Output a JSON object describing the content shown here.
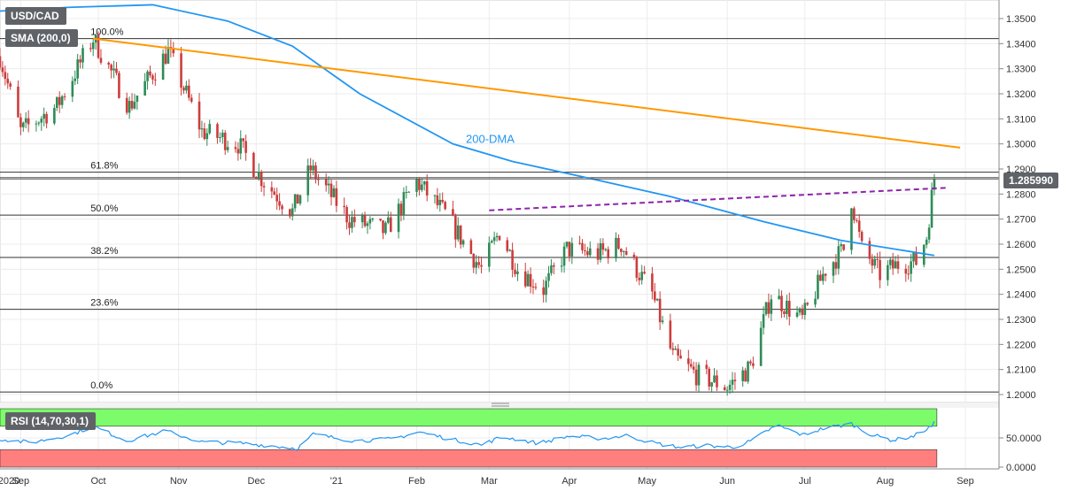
{
  "labels": {
    "symbol": "USD/CAD",
    "sma": "SMA (200,0)",
    "rsi": "RSI (14,70,30,1)",
    "dma_annotation": "200-DMA",
    "last_price": "1.285990"
  },
  "colors": {
    "up": "#2e8b57",
    "down": "#cd3c3c",
    "sma": "#2196f3",
    "trendline": "#ff9800",
    "dashed_line": "#8e24aa",
    "rsi_overbought": "#7cfc6a",
    "rsi_oversold": "#ff7f7f",
    "rsi_line": "#2196f3"
  },
  "chart_data": [
    {
      "type": "candlestick",
      "symbol": "USD/CAD",
      "period": "2020-08-24 to 2021-08-20, daily",
      "ylim": [
        1.195,
        1.357
      ],
      "y_ticks": [
        "1.3500",
        "1.3400",
        "1.3300",
        "1.3200",
        "1.3100",
        "1.3000",
        "1.2900",
        "1.2800",
        "1.2700",
        "1.2600",
        "1.2500",
        "1.2400",
        "1.2300",
        "1.2200",
        "1.2100",
        "1.2000"
      ],
      "x_ticks": [
        "2020",
        "Sep",
        "Oct",
        "Nov",
        "Dec",
        "'21",
        "Feb",
        "Mar",
        "Apr",
        "May",
        "Jun",
        "Jul",
        "Aug",
        "Sep"
      ],
      "x_tick_dates": [
        "2020-08-24",
        "2020-09-01",
        "2020-10-01",
        "2020-11-01",
        "2020-12-01",
        "2021-01-01",
        "2021-02-01",
        "2021-03-01",
        "2021-04-01",
        "2021-05-01",
        "2021-06-01",
        "2021-07-01",
        "2021-08-01",
        "2021-09-01"
      ],
      "close_path": [
        [
          "2020-08-24",
          1.335
        ],
        [
          "2020-09-01",
          1.305
        ],
        [
          "2020-09-15",
          1.315
        ],
        [
          "2020-09-29",
          1.342
        ],
        [
          "2020-10-13",
          1.315
        ],
        [
          "2020-10-28",
          1.337
        ],
        [
          "2020-11-10",
          1.305
        ],
        [
          "2020-11-24",
          1.3
        ],
        [
          "2020-12-04",
          1.285
        ],
        [
          "2020-12-15",
          1.273
        ],
        [
          "2020-12-22",
          1.29
        ],
        [
          "2021-01-06",
          1.27
        ],
        [
          "2021-01-20",
          1.265
        ],
        [
          "2021-02-01",
          1.285
        ],
        [
          "2021-02-12",
          1.272
        ],
        [
          "2021-02-26",
          1.25
        ],
        [
          "2021-03-05",
          1.265
        ],
        [
          "2021-03-12",
          1.25
        ],
        [
          "2021-03-22",
          1.242
        ],
        [
          "2021-03-31",
          1.258
        ],
        [
          "2021-04-12",
          1.256
        ],
        [
          "2021-04-21",
          1.26
        ],
        [
          "2021-05-03",
          1.24
        ],
        [
          "2021-05-11",
          1.215
        ],
        [
          "2021-05-20",
          1.208
        ],
        [
          "2021-06-01",
          1.203
        ],
        [
          "2021-06-10",
          1.211
        ],
        [
          "2021-06-18",
          1.24
        ],
        [
          "2021-06-30",
          1.23
        ],
        [
          "2021-07-09",
          1.25
        ],
        [
          "2021-07-16",
          1.258
        ],
        [
          "2021-07-19",
          1.278
        ],
        [
          "2021-07-23",
          1.258
        ],
        [
          "2021-07-30",
          1.248
        ],
        [
          "2021-08-06",
          1.252
        ],
        [
          "2021-08-13",
          1.253
        ],
        [
          "2021-08-17",
          1.263
        ],
        [
          "2021-08-19",
          1.279
        ],
        [
          "2021-08-20",
          1.286
        ]
      ],
      "last_price": 1.28599,
      "sma_200": {
        "name": "SMA (200,0)",
        "points": [
          [
            "2020-08-24",
            1.353
          ],
          [
            "2020-09-20",
            1.3545
          ],
          [
            "2020-10-22",
            1.3555
          ],
          [
            "2020-11-20",
            1.349
          ],
          [
            "2020-12-15",
            1.339
          ],
          [
            "2021-01-10",
            1.32
          ],
          [
            "2021-02-15",
            1.3
          ],
          [
            "2021-03-10",
            1.293
          ],
          [
            "2021-04-10",
            1.286
          ],
          [
            "2021-05-10",
            1.279
          ],
          [
            "2021-06-15",
            1.269
          ],
          [
            "2021-07-15",
            1.2615
          ],
          [
            "2021-08-20",
            1.2555
          ]
        ]
      },
      "resistance_line": {
        "color": "orange",
        "points": [
          [
            "2020-09-29",
            1.342
          ],
          [
            "2021-08-30",
            1.2985
          ]
        ]
      },
      "dashed_line": {
        "color": "purple",
        "points": [
          [
            "2021-03-01",
            1.2735
          ],
          [
            "2021-08-25",
            1.2825
          ]
        ]
      },
      "horizontal_levels": [
        1.342,
        1.2887,
        1.2865,
        1.2716,
        1.2547,
        1.234,
        1.201
      ],
      "fibonacci": [
        {
          "label": "100.0%",
          "level": 1.342
        },
        {
          "label": "61.8%",
          "level": 1.2887
        },
        {
          "label": "50.0%",
          "level": 1.2716
        },
        {
          "label": "38.2%",
          "level": 1.2547
        },
        {
          "label": "23.6%",
          "level": 1.234
        },
        {
          "label": "0.0%",
          "level": 1.201
        }
      ],
      "annotations": [
        {
          "text": "200-DMA",
          "date": "2021-02-20",
          "price": 1.3005
        }
      ]
    },
    {
      "type": "line",
      "name": "RSI (14,70,30,1)",
      "ylim": [
        0,
        100
      ],
      "y_ticks": [
        "50.0000",
        "0.0000"
      ],
      "overbought": 70,
      "oversold": 30,
      "values": [
        [
          "2020-08-24",
          48
        ],
        [
          "2020-09-05",
          42
        ],
        [
          "2020-09-20",
          55
        ],
        [
          "2020-09-29",
          70
        ],
        [
          "2020-10-12",
          45
        ],
        [
          "2020-10-27",
          62
        ],
        [
          "2020-11-10",
          43
        ],
        [
          "2020-11-25",
          41
        ],
        [
          "2020-12-08",
          36
        ],
        [
          "2020-12-17",
          32
        ],
        [
          "2020-12-23",
          56
        ],
        [
          "2021-01-08",
          45
        ],
        [
          "2021-01-22",
          48
        ],
        [
          "2021-02-02",
          60
        ],
        [
          "2021-02-15",
          47
        ],
        [
          "2021-02-26",
          38
        ],
        [
          "2021-03-06",
          52
        ],
        [
          "2021-03-20",
          41
        ],
        [
          "2021-04-01",
          53
        ],
        [
          "2021-04-14",
          49
        ],
        [
          "2021-04-23",
          54
        ],
        [
          "2021-05-05",
          40
        ],
        [
          "2021-05-14",
          34
        ],
        [
          "2021-05-24",
          37
        ],
        [
          "2021-06-03",
          34
        ],
        [
          "2021-06-10",
          44
        ],
        [
          "2021-06-20",
          72
        ],
        [
          "2021-06-30",
          55
        ],
        [
          "2021-07-08",
          66
        ],
        [
          "2021-07-19",
          74
        ],
        [
          "2021-07-27",
          55
        ],
        [
          "2021-08-04",
          46
        ],
        [
          "2021-08-12",
          53
        ],
        [
          "2021-08-19",
          70
        ],
        [
          "2021-08-20",
          75
        ]
      ]
    }
  ]
}
